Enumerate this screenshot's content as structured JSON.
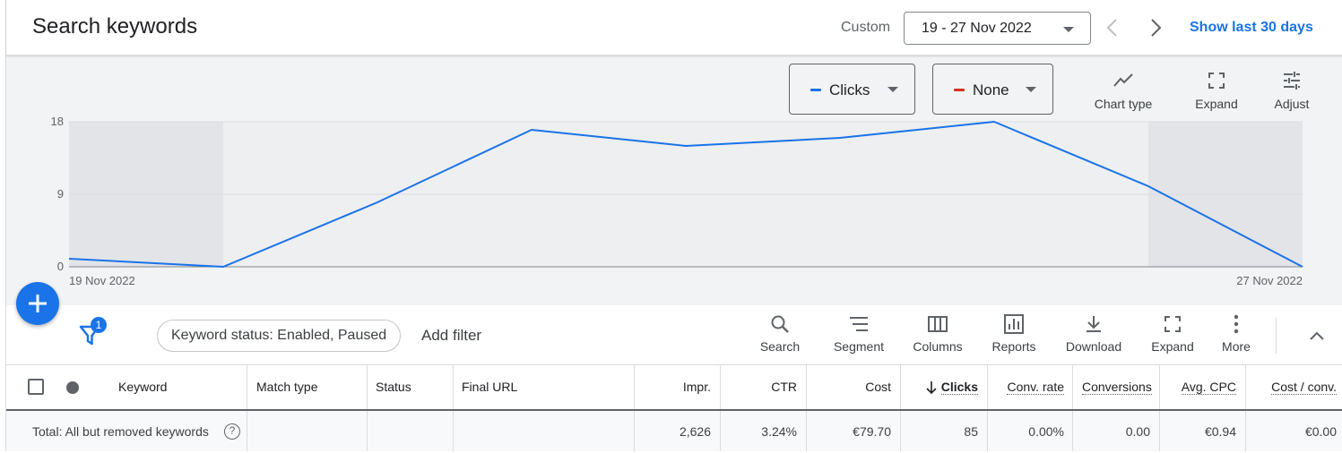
{
  "header": {
    "title": "Search keywords",
    "range_label": "Custom",
    "date_range": "19 - 27 Nov 2022",
    "show_last": "Show last 30 days"
  },
  "chart_controls": {
    "metric1": {
      "label": "Clicks",
      "color": "#1a73e8"
    },
    "metric2": {
      "label": "None",
      "color": "#d93025"
    },
    "chart_type": "Chart type",
    "expand": "Expand",
    "adjust": "Adjust"
  },
  "chart_data": {
    "type": "line",
    "x": [
      "19 Nov 2022",
      "20 Nov 2022",
      "21 Nov 2022",
      "22 Nov 2022",
      "23 Nov 2022",
      "24 Nov 2022",
      "25 Nov 2022",
      "26 Nov 2022",
      "27 Nov 2022"
    ],
    "x_tick_labels": [
      "19 Nov 2022",
      "27 Nov 2022"
    ],
    "series": [
      {
        "name": "Clicks",
        "values": [
          1,
          0,
          8,
          17,
          15,
          16,
          18,
          10,
          0
        ]
      }
    ],
    "y_ticks": [
      "0",
      "9",
      "18"
    ],
    "ylim": [
      0,
      18
    ],
    "grid": true,
    "shaded_weekend_indices": [
      0,
      7,
      8
    ],
    "line_color": "#1a73e8"
  },
  "toolbar": {
    "filter_badge": "1",
    "filter_chip": "Keyword status: Enabled, Paused",
    "add_filter": "Add filter",
    "search": "Search",
    "segment": "Segment",
    "columns": "Columns",
    "reports": "Reports",
    "download": "Download",
    "expand": "Expand",
    "more": "More"
  },
  "table": {
    "headers": {
      "keyword": "Keyword",
      "match_type": "Match type",
      "status": "Status",
      "final_url": "Final URL",
      "impr": "Impr.",
      "ctr": "CTR",
      "cost": "Cost",
      "clicks": "Clicks",
      "conv_rate": "Conv. rate",
      "conversions": "Conversions",
      "avg_cpc": "Avg. CPC",
      "cost_conv": "Cost / conv."
    },
    "total": {
      "label": "Total: All but removed keywords",
      "help": "?",
      "impr": "2,626",
      "ctr": "3.24%",
      "cost": "€79.70",
      "clicks": "85",
      "conv_rate": "0.00%",
      "conversions": "0.00",
      "avg_cpc": "€0.94",
      "cost_conv": "€0.00"
    }
  }
}
